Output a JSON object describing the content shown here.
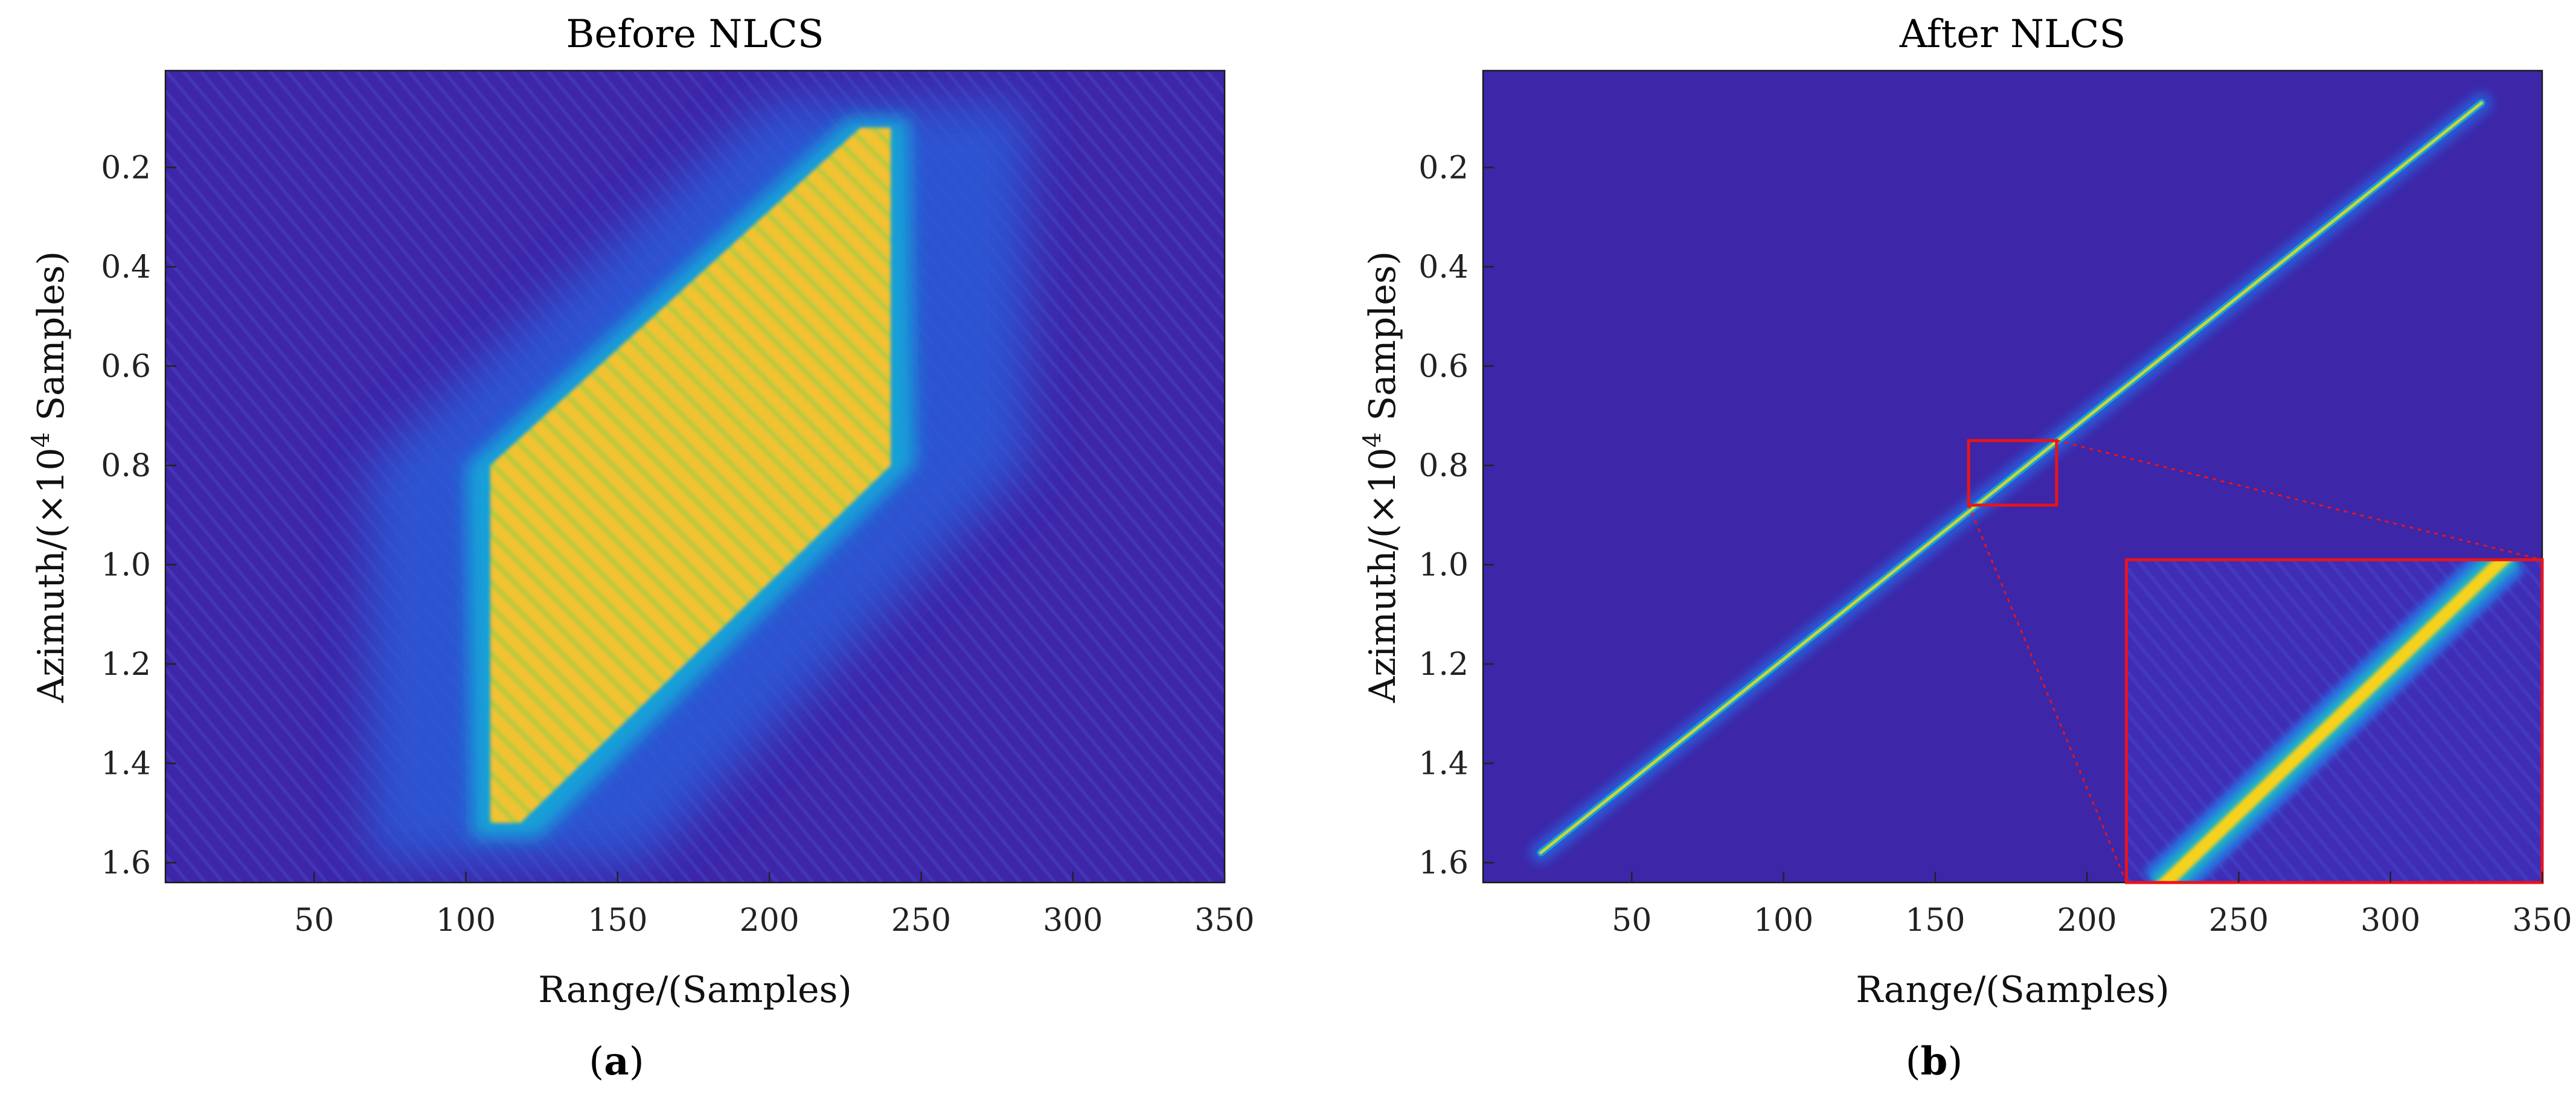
{
  "figure": {
    "captions": [
      "a",
      "b"
    ],
    "caption_open": "(",
    "caption_close": ")"
  },
  "chart_data": [
    {
      "type": "heatmap",
      "title": "Before NLCS",
      "xlabel": "Range/(Samples)",
      "ylabel_pre": "Azimuth/(×10",
      "ylabel_exp": "4",
      "ylabel_post": " Samples)",
      "xlim": [
        1,
        350
      ],
      "ylim": [
        0.005,
        1.64
      ],
      "y_reversed": true,
      "xticks": [
        50,
        100,
        150,
        200,
        250,
        300,
        350
      ],
      "yticks": [
        0.2,
        0.4,
        0.6,
        0.8,
        1.0,
        1.2,
        1.4,
        1.6
      ],
      "ytick_labels": [
        "0.2",
        "0.4",
        "0.6",
        "0.8",
        "1.0",
        "1.2",
        "1.4",
        "1.6"
      ],
      "colormap": [
        "#3d26a8",
        "#2a5bd9",
        "#18a0d8",
        "#3cc0a2",
        "#b6c63a",
        "#f6c233",
        "#f9e81c"
      ],
      "background": "#3d26a8",
      "features": {
        "shape": "parallelogram",
        "description_values": {
          "top_row": 0.12,
          "bottom_row": 1.52,
          "top_left_range": 230,
          "top_right_range": 240,
          "mid_row": 0.8,
          "mid_left_range": 108,
          "mid_right_range": 240,
          "bottom_left_range": 108,
          "bottom_right_range": 118
        }
      }
    },
    {
      "type": "heatmap",
      "title": "After NLCS",
      "xlabel": "Range/(Samples)",
      "ylabel_pre": "Azimuth/(×10",
      "ylabel_exp": "4",
      "ylabel_post": " Samples)",
      "xlim": [
        1,
        350
      ],
      "ylim": [
        0.005,
        1.64
      ],
      "y_reversed": true,
      "xticks": [
        50,
        100,
        150,
        200,
        250,
        300,
        350
      ],
      "yticks": [
        0.2,
        0.4,
        0.6,
        0.8,
        1.0,
        1.2,
        1.4,
        1.6
      ],
      "ytick_labels": [
        "0.2",
        "0.4",
        "0.6",
        "0.8",
        "1.0",
        "1.2",
        "1.4",
        "1.6"
      ],
      "colormap": [
        "#3d26a8",
        "#2a5bd9",
        "#18a0d8",
        "#3cc0a2",
        "#b6c63a",
        "#f6c233",
        "#f9e81c"
      ],
      "background": "#3d26a8",
      "focused_line": {
        "start": [
          20,
          1.58
        ],
        "end": [
          330,
          0.07
        ]
      },
      "zoom_box": {
        "x_range": [
          161,
          190
        ],
        "y_range": [
          0.75,
          0.88
        ],
        "color": "#e8141c"
      },
      "inset": {
        "x_range": [
          213,
          350
        ],
        "y_range": [
          0.99,
          1.64
        ],
        "color": "#e8141c"
      }
    }
  ]
}
